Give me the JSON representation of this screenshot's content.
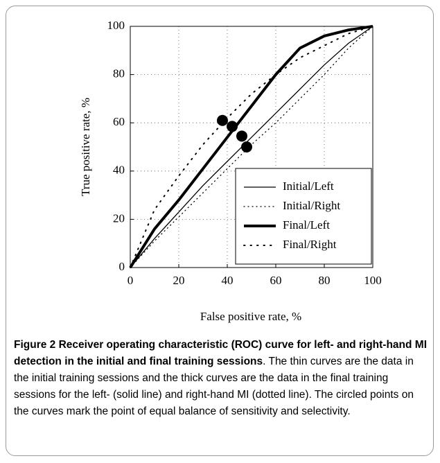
{
  "chart_data": {
    "type": "line",
    "xlabel": "False positive rate, %",
    "ylabel": "True positive rate, %",
    "x": [
      0,
      10,
      20,
      30,
      40,
      50,
      60,
      70,
      80,
      90,
      100
    ],
    "series": [
      {
        "name": "Initial/Left",
        "color": "#000",
        "style": "solid",
        "width": 1.3,
        "values": [
          0,
          12,
          23,
          34,
          44,
          54,
          64,
          74,
          84,
          93,
          100
        ]
      },
      {
        "name": "Initial/Right",
        "color": "#000",
        "style": "dotted",
        "width": 1.3,
        "values": [
          0,
          11,
          21,
          31,
          41,
          51,
          60,
          70,
          80,
          91,
          100
        ]
      },
      {
        "name": "Final/Left",
        "color": "#000",
        "style": "solid",
        "width": 4,
        "values": [
          0,
          16,
          28,
          41,
          54,
          67,
          80,
          91,
          96,
          98.5,
          100
        ]
      },
      {
        "name": "Final/Right",
        "color": "#000",
        "style": "dotted",
        "width": 2,
        "values": [
          0,
          24,
          38,
          51,
          62,
          72,
          80,
          87,
          92,
          97,
          100
        ]
      }
    ],
    "points": {
      "x": [
        38,
        42,
        46,
        48
      ],
      "y": [
        61,
        58.5,
        54.5,
        50
      ]
    },
    "xlim": [
      0,
      100
    ],
    "ylim": [
      0,
      100
    ],
    "xticks": [
      0,
      20,
      40,
      60,
      80,
      100
    ],
    "yticks": [
      0,
      20,
      40,
      60,
      80,
      100
    ],
    "grid": true,
    "legend": "lower right"
  },
  "caption": {
    "bold": "Figure 2 Receiver operating characteristic (ROC) curve for left- and right-hand MI detection in the initial and final training sessions",
    "text": ". The thin curves are the data in the initial training sessions and the thick curves are the data in the final training sessions for the left- (solid line) and right-hand MI (dotted line). The circled points on the curves mark the point of equal balance of sensitivity and selectivity."
  }
}
